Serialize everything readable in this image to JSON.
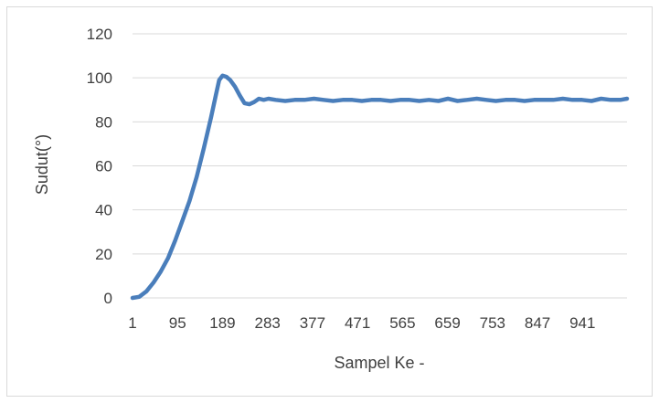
{
  "chart_data": {
    "type": "line",
    "title": "",
    "xlabel": "Sampel Ke -",
    "ylabel": "Sudut(°)",
    "ylim": [
      0,
      120
    ],
    "xlim": [
      1,
      1034
    ],
    "yticks": [
      "0",
      "20",
      "40",
      "60",
      "80",
      "100",
      "120"
    ],
    "xticks": [
      "1",
      "95",
      "189",
      "283",
      "377",
      "471",
      "565",
      "659",
      "753",
      "847",
      "941"
    ],
    "xtick_values": [
      1,
      95,
      189,
      283,
      377,
      471,
      565,
      659,
      753,
      847,
      941
    ],
    "grid": true,
    "legend": "none",
    "line_color": "#4a7ebb",
    "grid_color": "#d9d9d9",
    "series": [
      {
        "x": [
          1,
          15,
          30,
          45,
          60,
          75,
          90,
          105,
          120,
          135,
          150,
          165,
          175,
          182,
          189,
          197,
          205,
          215,
          225,
          235,
          245,
          255,
          265,
          275,
          285,
          300,
          320,
          340,
          360,
          380,
          400,
          420,
          440,
          460,
          480,
          500,
          520,
          540,
          560,
          580,
          600,
          620,
          640,
          660,
          680,
          700,
          720,
          740,
          760,
          780,
          800,
          820,
          840,
          860,
          880,
          900,
          920,
          940,
          960,
          980,
          1000,
          1020,
          1034
        ],
        "y": [
          0,
          0.5,
          3,
          7,
          12,
          18,
          26,
          35,
          44,
          55,
          68,
          82,
          92,
          99,
          101,
          100.5,
          99,
          96,
          92,
          88.5,
          88,
          89,
          90.5,
          90,
          90.5,
          90,
          89.5,
          90,
          90,
          90.5,
          90,
          89.5,
          90,
          90,
          89.5,
          90,
          90,
          89.5,
          90,
          90,
          89.5,
          90,
          89.5,
          90.5,
          89.5,
          90,
          90.5,
          90,
          89.5,
          90,
          90,
          89.5,
          90,
          90,
          90,
          90.5,
          90,
          90,
          89.5,
          90.5,
          90,
          90,
          90.5
        ]
      }
    ]
  }
}
